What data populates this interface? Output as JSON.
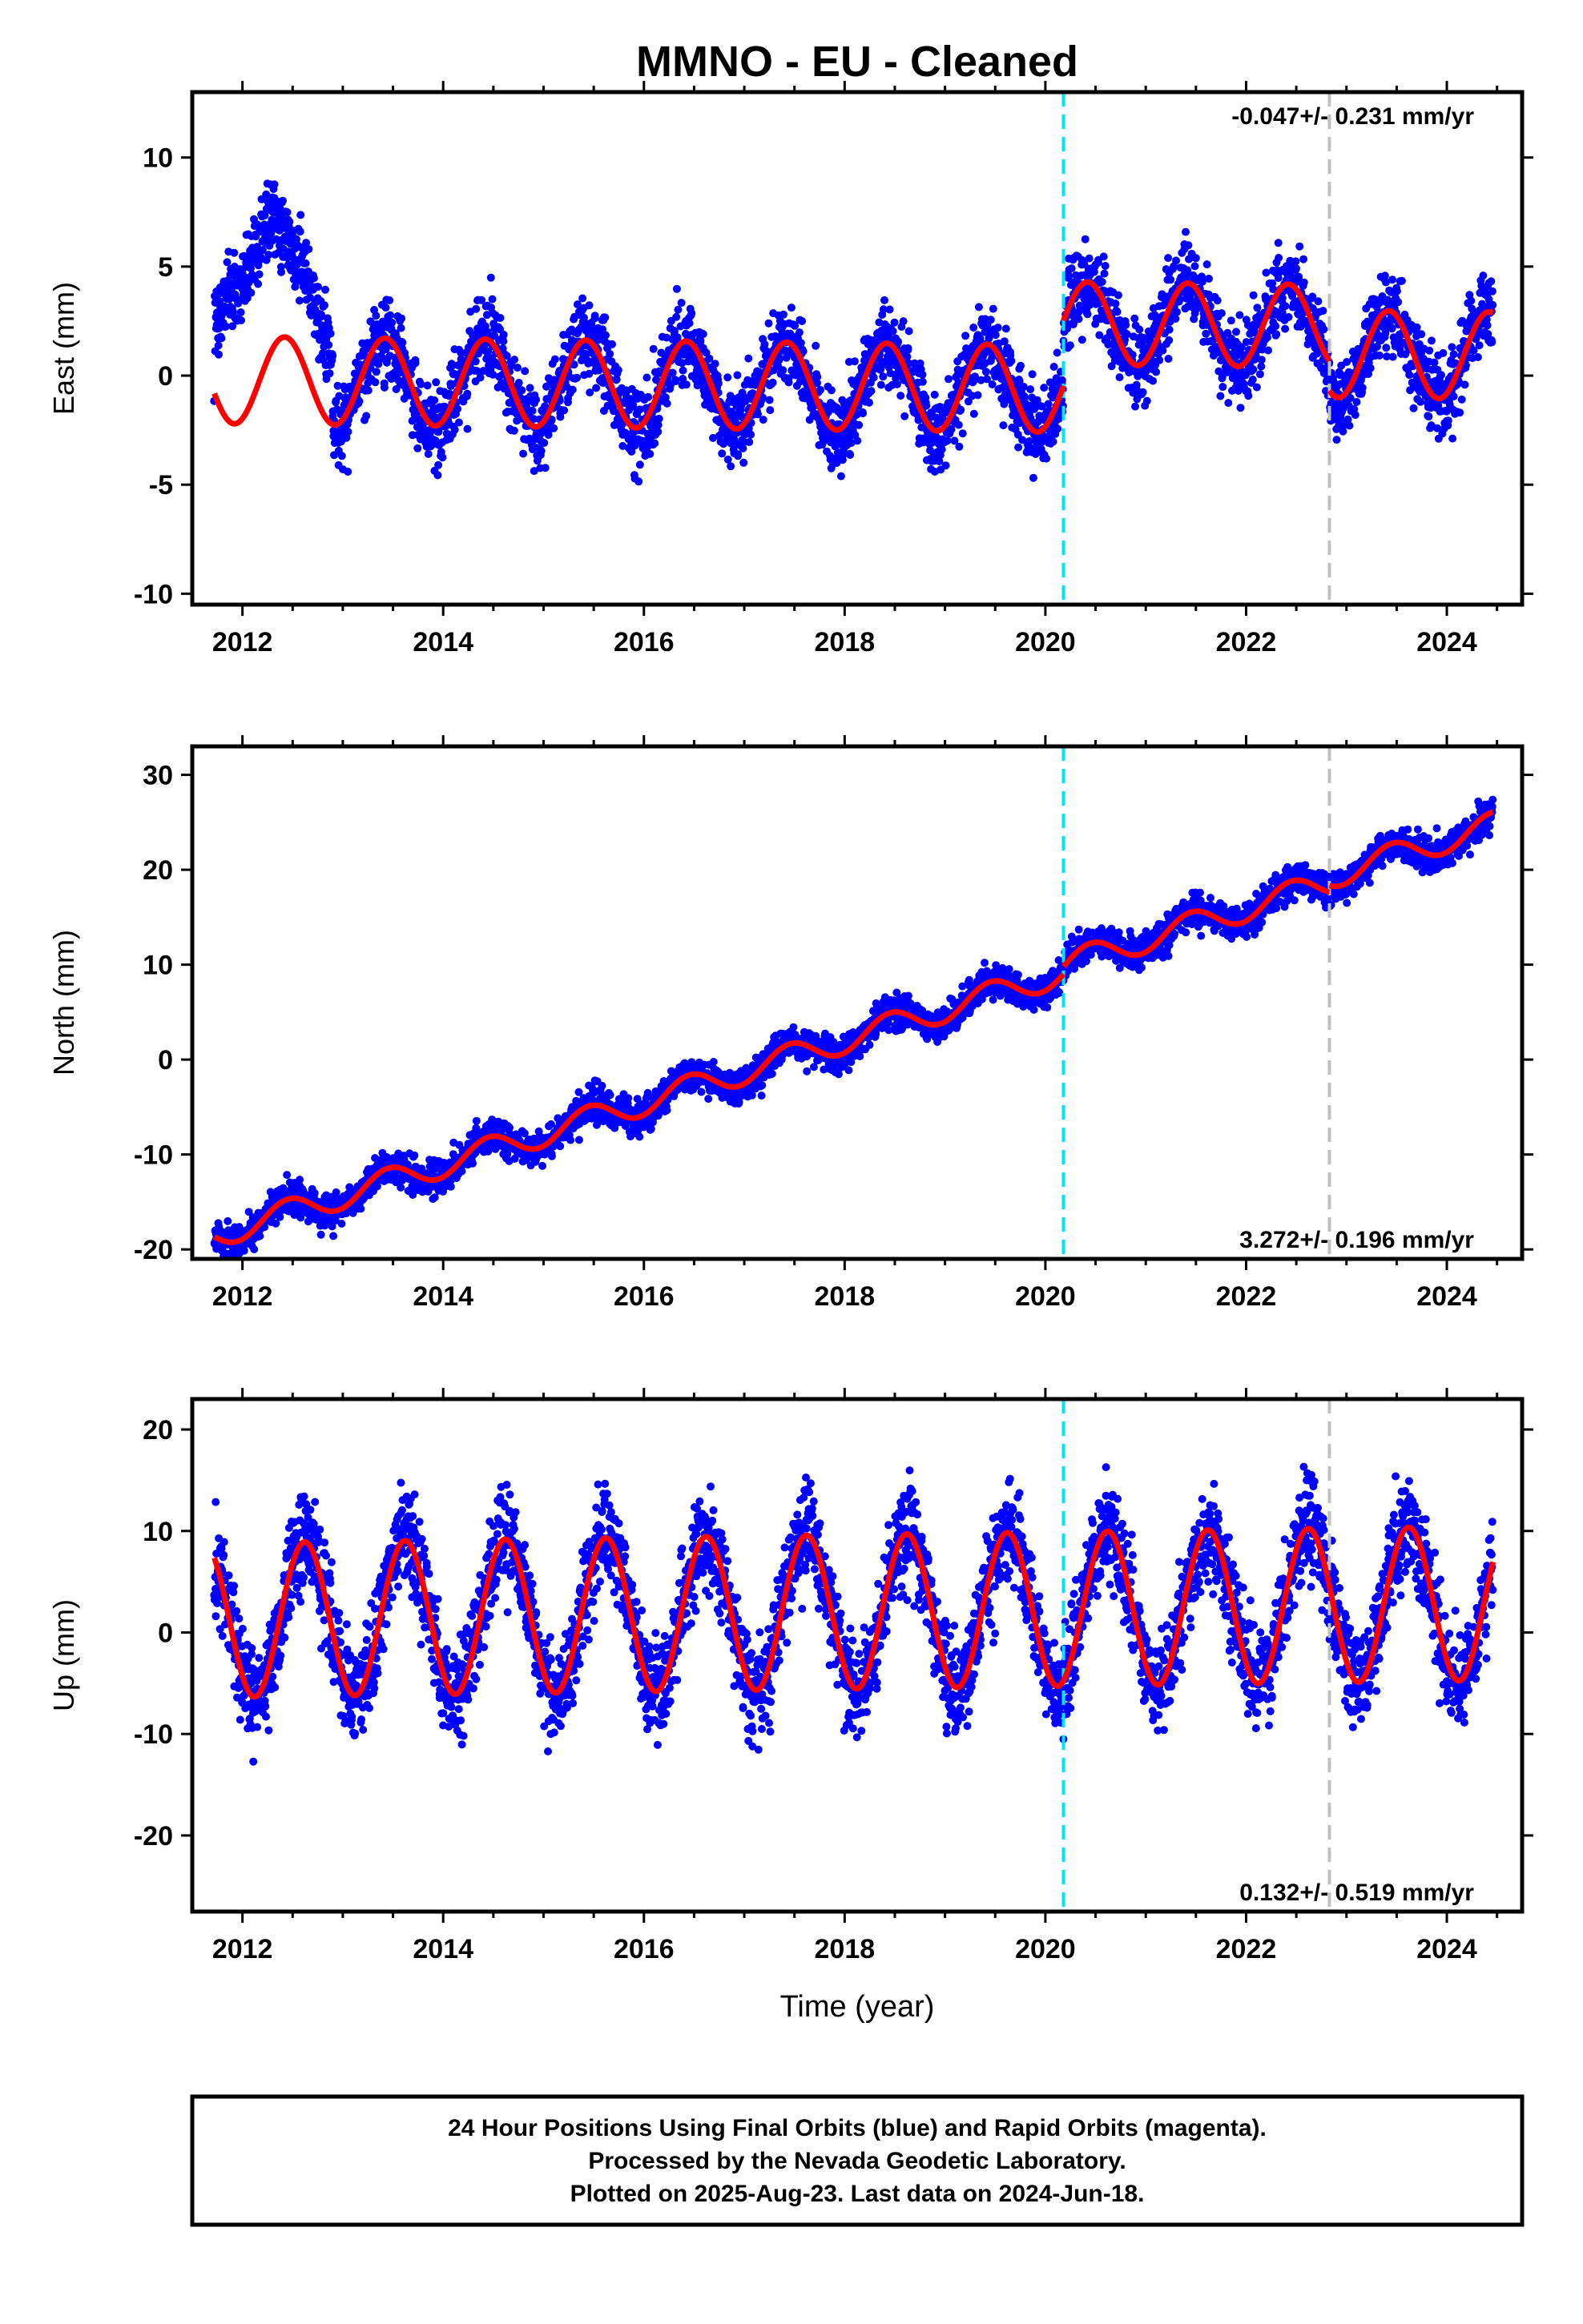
{
  "title": "MMNO  - EU - Cleaned",
  "x_axis_label": "Time (year)",
  "footer": {
    "line1": "24 Hour Positions Using Final Orbits (blue) and Rapid Orbits (magenta).",
    "line2": "Processed by the Nevada Geodetic Laboratory.",
    "line3": "Plotted on 2025-Aug-23. Last data on 2024-Jun-18."
  },
  "colors": {
    "points": "#0000ff",
    "model": "#ff0000",
    "equipment_change": "#00e5ff",
    "other_event": "#c0c0c0"
  },
  "chart_data": [
    {
      "type": "scatter",
      "name_label": "East (mm)",
      "ylabel": "East (mm)",
      "rate_label": "-0.047+/- 0.231 mm/yr",
      "xlim": [
        2011.5,
        2024.75
      ],
      "ylim": [
        -10.5,
        13
      ],
      "x_ticks": [
        2012,
        2014,
        2016,
        2018,
        2020,
        2022,
        2024
      ],
      "y_ticks": [
        -10,
        -5,
        0,
        5,
        10
      ],
      "date_start": 2011.72,
      "date_end": 2024.46,
      "event_lines": [
        2020.18,
        2022.83
      ],
      "model_segments": [
        {
          "from": 2011.72,
          "to": 2020.18,
          "offset": -0.2,
          "slope": -0.047,
          "amplitude": 2.0,
          "peak": 0.42
        },
        {
          "from": 2020.18,
          "to": 2022.83,
          "offset": 2.4,
          "slope": -0.047,
          "amplitude": 1.9,
          "peak": 0.42
        },
        {
          "from": 2022.83,
          "to": 2024.46,
          "offset": 1.0,
          "slope": -0.047,
          "amplitude": 2.0,
          "peak": 0.42
        }
      ],
      "scatter_noise": 1.6,
      "anomaly": {
        "from": 2011.72,
        "to": 2012.9,
        "values": [
          2.5,
          4.5,
          7.5,
          5.0,
          0.5
        ]
      }
    },
    {
      "type": "scatter",
      "ylabel": "North (mm)",
      "rate_label": "3.272+/- 0.196 mm/yr",
      "xlim": [
        2011.5,
        2024.75
      ],
      "ylim": [
        -21,
        33
      ],
      "x_ticks": [
        2012,
        2014,
        2016,
        2018,
        2020,
        2022,
        2024
      ],
      "y_ticks": [
        -20,
        -10,
        0,
        10,
        20,
        30
      ],
      "date_start": 2011.72,
      "date_end": 2024.46,
      "event_lines": [
        2020.18,
        2022.83
      ],
      "model_segments": [
        {
          "from": 2011.72,
          "to": 2020.18,
          "offset": -18.5,
          "slope": 3.272,
          "amplitude": 1.4,
          "peak": 0.45,
          "ref": 2011.72
        },
        {
          "from": 2020.18,
          "to": 2022.83,
          "offset": -17.7,
          "slope": 3.272,
          "amplitude": 1.4,
          "peak": 0.45,
          "ref": 2011.72
        },
        {
          "from": 2022.83,
          "to": 2024.46,
          "offset": -17.0,
          "slope": 3.272,
          "amplitude": 1.4,
          "peak": 0.45,
          "ref": 2011.72
        }
      ],
      "scatter_noise": 1.5
    },
    {
      "type": "scatter",
      "ylabel": "Up (mm)",
      "rate_label": "0.132+/- 0.519 mm/yr",
      "xlim": [
        2011.5,
        2024.75
      ],
      "ylim": [
        -27.5,
        23
      ],
      "x_ticks": [
        2012,
        2014,
        2016,
        2018,
        2020,
        2022,
        2024
      ],
      "y_ticks": [
        -20,
        -10,
        0,
        10,
        20
      ],
      "date_start": 2011.72,
      "date_end": 2024.46,
      "event_lines": [
        2020.18,
        2022.83
      ],
      "model_segments": [
        {
          "from": 2011.72,
          "to": 2024.46,
          "offset": 1.2,
          "slope": 0.132,
          "amplitude": 7.6,
          "peak": 0.62
        }
      ],
      "scatter_noise": 4.2
    }
  ]
}
